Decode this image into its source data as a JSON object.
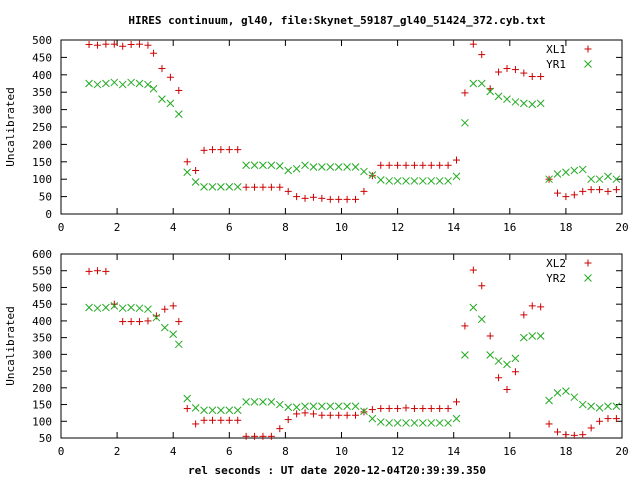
{
  "figure": {
    "title": "HIRES continuum, gl40, file:Skynet_59187_gl40_51424_372.cyb.txt",
    "xlabel": "rel seconds : UT date 2020-12-04T20:39:39.350"
  },
  "colors": {
    "plus": "#cc0000",
    "cross": "#22aa22",
    "axes": "#000000"
  },
  "chart_data": [
    {
      "type": "scatter",
      "title": "HIRES continuum, gl40, file:Skynet_59187_gl40_51424_372.cyb.txt",
      "xlabel": "",
      "ylabel": "Uncalibrated",
      "xlim": [
        0,
        20
      ],
      "ylim": [
        0,
        500
      ],
      "xticks": [
        0,
        2,
        4,
        6,
        8,
        10,
        12,
        14,
        16,
        18,
        20
      ],
      "yticks": [
        0,
        50,
        100,
        150,
        200,
        250,
        300,
        350,
        400,
        450,
        500
      ],
      "grid": false,
      "legend_position": "top-right",
      "series": [
        {
          "name": "XL1",
          "marker": "plus",
          "x": [
            1.0,
            1.3,
            1.6,
            1.9,
            2.2,
            2.5,
            2.8,
            3.1,
            3.3,
            3.6,
            3.9,
            4.2,
            4.5,
            4.8,
            5.1,
            5.4,
            5.7,
            6.0,
            6.3,
            6.6,
            6.9,
            7.2,
            7.5,
            7.8,
            8.1,
            8.4,
            8.7,
            9.0,
            9.3,
            9.6,
            9.9,
            10.2,
            10.5,
            10.8,
            11.1,
            11.4,
            11.7,
            12.0,
            12.3,
            12.6,
            12.9,
            13.2,
            13.5,
            13.8,
            14.1,
            14.4,
            14.7,
            15.0,
            15.3,
            15.6,
            15.9,
            16.2,
            16.5,
            16.8,
            17.1,
            17.4,
            17.7,
            18.0,
            18.3,
            18.6,
            18.9,
            19.2,
            19.5,
            19.8
          ],
          "y": [
            487,
            485,
            488,
            488,
            482,
            487,
            488,
            485,
            462,
            418,
            393,
            355,
            150,
            125,
            183,
            185,
            185,
            185,
            185,
            77,
            77,
            77,
            77,
            77,
            65,
            50,
            45,
            48,
            45,
            42,
            42,
            42,
            42,
            65,
            110,
            140,
            140,
            140,
            140,
            140,
            140,
            140,
            140,
            140,
            155,
            348,
            488,
            458,
            360,
            408,
            418,
            415,
            405,
            395,
            395,
            100,
            60,
            50,
            55,
            65,
            70,
            70,
            65,
            70
          ]
        },
        {
          "name": "YR1",
          "marker": "cross",
          "x": [
            1.0,
            1.3,
            1.6,
            1.9,
            2.2,
            2.5,
            2.8,
            3.1,
            3.3,
            3.6,
            3.9,
            4.2,
            4.5,
            4.8,
            5.1,
            5.4,
            5.7,
            6.0,
            6.3,
            6.6,
            6.9,
            7.2,
            7.5,
            7.8,
            8.1,
            8.4,
            8.7,
            9.0,
            9.3,
            9.6,
            9.9,
            10.2,
            10.5,
            10.8,
            11.1,
            11.4,
            11.7,
            12.0,
            12.3,
            12.6,
            12.9,
            13.2,
            13.5,
            13.8,
            14.1,
            14.4,
            14.7,
            15.0,
            15.3,
            15.6,
            15.9,
            16.2,
            16.5,
            16.8,
            17.1,
            17.4,
            17.7,
            18.0,
            18.3,
            18.6,
            18.9,
            19.2,
            19.5,
            19.8
          ],
          "y": [
            375,
            372,
            375,
            378,
            372,
            378,
            375,
            372,
            360,
            330,
            318,
            287,
            120,
            92,
            78,
            78,
            78,
            78,
            78,
            140,
            140,
            140,
            140,
            138,
            125,
            130,
            140,
            135,
            135,
            135,
            135,
            135,
            135,
            122,
            112,
            98,
            95,
            95,
            95,
            95,
            95,
            95,
            95,
            95,
            108,
            262,
            375,
            375,
            352,
            338,
            330,
            322,
            318,
            315,
            318,
            100,
            115,
            120,
            125,
            128,
            100,
            100,
            108,
            100
          ]
        }
      ]
    },
    {
      "type": "scatter",
      "title": "",
      "xlabel": "rel seconds : UT date 2020-12-04T20:39:39.350",
      "ylabel": "Uncalibrated",
      "xlim": [
        0,
        20
      ],
      "ylim": [
        50,
        600
      ],
      "xticks": [
        0,
        2,
        4,
        6,
        8,
        10,
        12,
        14,
        16,
        18,
        20
      ],
      "yticks": [
        50,
        100,
        150,
        200,
        250,
        300,
        350,
        400,
        450,
        500,
        550,
        600
      ],
      "grid": false,
      "legend_position": "top-right",
      "series": [
        {
          "name": "XL2",
          "marker": "plus",
          "x": [
            1.0,
            1.3,
            1.6,
            1.9,
            2.2,
            2.5,
            2.8,
            3.1,
            3.4,
            3.7,
            4.0,
            4.2,
            4.5,
            4.8,
            5.1,
            5.4,
            5.7,
            6.0,
            6.3,
            6.6,
            6.9,
            7.2,
            7.5,
            7.8,
            8.1,
            8.4,
            8.7,
            9.0,
            9.3,
            9.6,
            9.9,
            10.2,
            10.5,
            10.8,
            11.1,
            11.4,
            11.7,
            12.0,
            12.3,
            12.6,
            12.9,
            13.2,
            13.5,
            13.8,
            14.1,
            14.4,
            14.7,
            15.0,
            15.3,
            15.6,
            15.9,
            16.2,
            16.5,
            16.8,
            17.1,
            17.4,
            17.7,
            18.0,
            18.3,
            18.6,
            18.9,
            19.2,
            19.5,
            19.8
          ],
          "y": [
            548,
            550,
            548,
            450,
            398,
            398,
            398,
            400,
            415,
            435,
            445,
            398,
            138,
            92,
            103,
            103,
            103,
            103,
            103,
            55,
            55,
            55,
            55,
            78,
            105,
            122,
            125,
            122,
            118,
            118,
            118,
            118,
            118,
            128,
            135,
            138,
            138,
            138,
            140,
            138,
            138,
            138,
            138,
            138,
            158,
            385,
            552,
            505,
            355,
            230,
            195,
            248,
            418,
            445,
            442,
            92,
            68,
            60,
            58,
            60,
            80,
            100,
            108,
            108
          ]
        },
        {
          "name": "YR2",
          "marker": "cross",
          "x": [
            1.0,
            1.3,
            1.6,
            1.9,
            2.2,
            2.5,
            2.8,
            3.1,
            3.4,
            3.7,
            4.0,
            4.2,
            4.5,
            4.8,
            5.1,
            5.4,
            5.7,
            6.0,
            6.3,
            6.6,
            6.9,
            7.2,
            7.5,
            7.8,
            8.1,
            8.4,
            8.7,
            9.0,
            9.3,
            9.6,
            9.9,
            10.2,
            10.5,
            10.8,
            11.1,
            11.4,
            11.7,
            12.0,
            12.3,
            12.6,
            12.9,
            13.2,
            13.5,
            13.8,
            14.1,
            14.4,
            14.7,
            15.0,
            15.3,
            15.6,
            15.9,
            16.2,
            16.5,
            16.8,
            17.1,
            17.4,
            17.7,
            18.0,
            18.3,
            18.6,
            18.9,
            19.2,
            19.5,
            19.8
          ],
          "y": [
            440,
            438,
            440,
            445,
            438,
            440,
            438,
            435,
            410,
            380,
            360,
            330,
            168,
            140,
            133,
            133,
            133,
            133,
            133,
            158,
            158,
            158,
            158,
            150,
            142,
            142,
            145,
            145,
            145,
            145,
            145,
            145,
            145,
            130,
            108,
            98,
            95,
            95,
            95,
            95,
            95,
            95,
            95,
            95,
            108,
            298,
            440,
            405,
            298,
            280,
            270,
            288,
            350,
            355,
            355,
            162,
            185,
            190,
            172,
            150,
            145,
            140,
            145,
            145
          ]
        }
      ]
    }
  ]
}
